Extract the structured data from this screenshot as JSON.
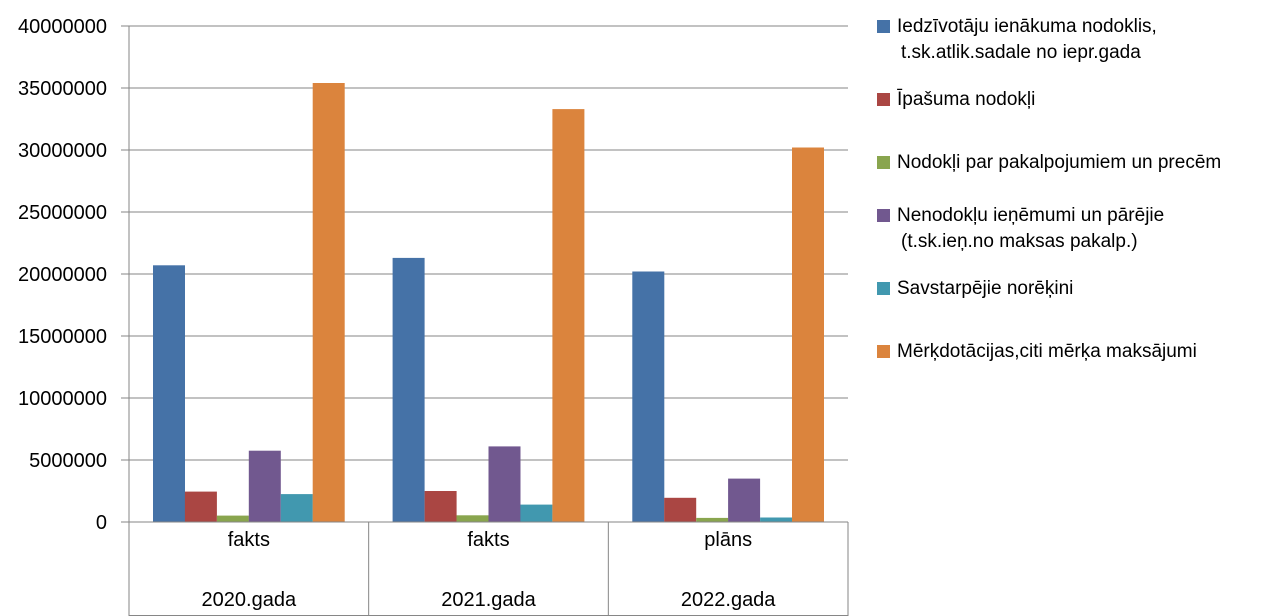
{
  "chart_data": {
    "type": "bar",
    "title": "",
    "xlabel": "",
    "ylabel": "",
    "ylim": [
      0,
      40000000
    ],
    "y_ticks": [
      "0",
      "5000000",
      "10000000",
      "15000000",
      "20000000",
      "25000000",
      "30000000",
      "35000000",
      "40000000"
    ],
    "grid": true,
    "legend_position": "right",
    "categories": [
      {
        "top": "fakts",
        "bottom": "2020.gada"
      },
      {
        "top": "fakts",
        "bottom": "2021.gada"
      },
      {
        "top": "plāns",
        "bottom": "2022.gada"
      }
    ],
    "series": [
      {
        "name": "Iedzīvotāju ienākuma nodoklis, t.sk.atlik.sadale no iepr.gada",
        "legend_lines": [
          "Iedzīvotāju ienākuma nodoklis,",
          "t.sk.atlik.sadale no iepr.gada"
        ],
        "color": "#4572A7",
        "values": [
          20700000,
          21300000,
          20200000
        ]
      },
      {
        "name": "Īpašuma nodokļi",
        "legend_lines": [
          "Īpašuma nodokļi"
        ],
        "color": "#AA4643",
        "values": [
          2450000,
          2500000,
          1950000
        ]
      },
      {
        "name": "Nodokļi par pakalpojumiem un precēm",
        "legend_lines": [
          "Nodokļi par pakalpojumiem un precēm"
        ],
        "color": "#89A54E",
        "values": [
          520000,
          540000,
          330000
        ]
      },
      {
        "name": "Nenodokļu ieņēmumi un pārējie (t.sk.ieņ.no maksas pakalp.)",
        "legend_lines": [
          "Nenodokļu ieņēmumi un pārējie",
          "(t.sk.ieņ.no maksas pakalp.)"
        ],
        "color": "#71588F",
        "values": [
          5750000,
          6100000,
          3500000
        ]
      },
      {
        "name": "Savstarpējie norēķini",
        "legend_lines": [
          "Savstarpējie norēķini"
        ],
        "color": "#4198AF",
        "values": [
          2250000,
          1400000,
          360000
        ]
      },
      {
        "name": "Mērķdotācijas,citi mērķa maksājumi",
        "legend_lines": [
          "Mērķdotācijas,citi mērķa maksājumi"
        ],
        "color": "#DB843D",
        "values": [
          35400000,
          33300000,
          30200000
        ]
      }
    ]
  }
}
